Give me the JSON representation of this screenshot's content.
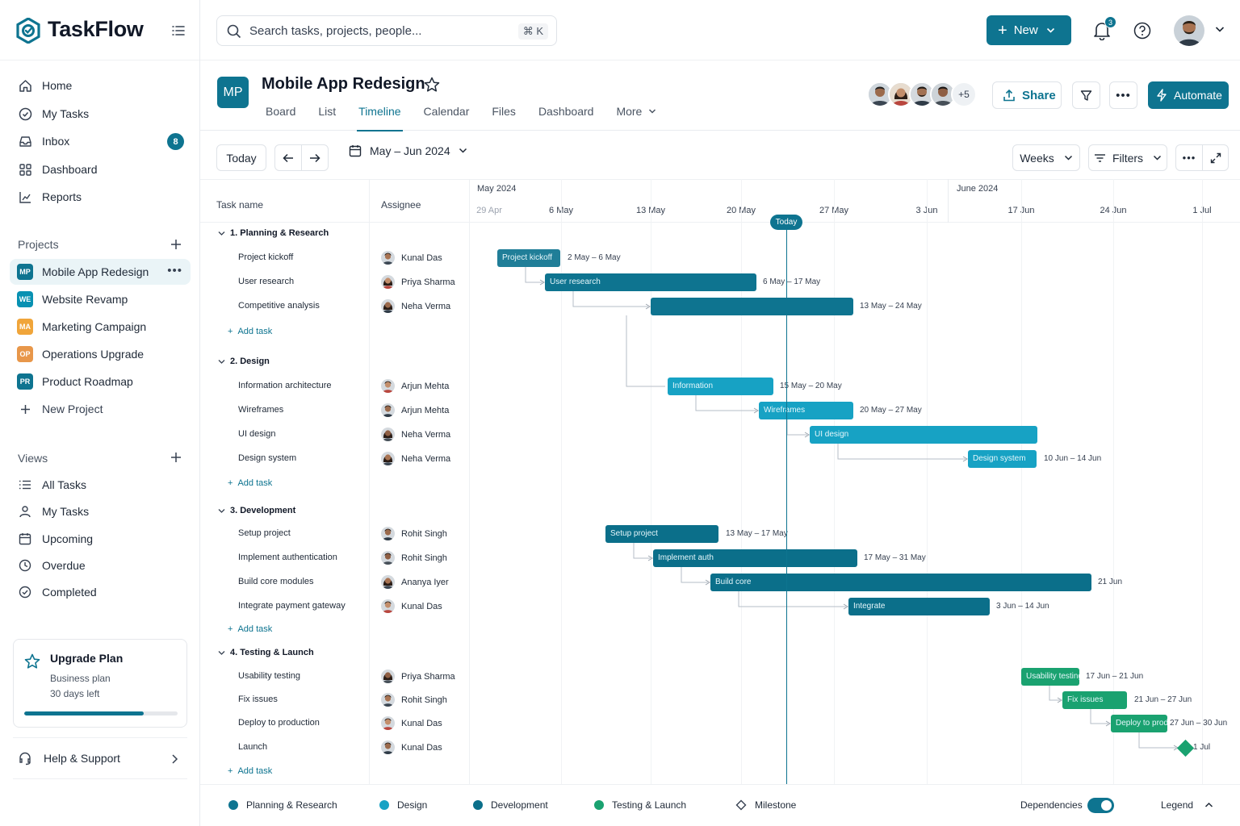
{
  "app": {
    "name": "TaskFlow"
  },
  "sidebar": {
    "nav": [
      {
        "label": "Home",
        "icon": "home-icon"
      },
      {
        "label": "My Tasks",
        "icon": "check-circle-icon"
      },
      {
        "label": "Inbox",
        "icon": "inbox-icon",
        "badge": "8"
      },
      {
        "label": "Dashboard",
        "icon": "grid-icon"
      },
      {
        "label": "Reports",
        "icon": "chart-icon"
      }
    ],
    "projects_title": "Projects",
    "projects": [
      {
        "code": "MP",
        "label": "Mobile App Redesign",
        "color": "#0e7490",
        "active": true
      },
      {
        "code": "WE",
        "label": "Website Revamp",
        "color": "#0891b2"
      },
      {
        "code": "MA",
        "label": "Marketing Campaign",
        "color": "#f59e0b"
      },
      {
        "code": "OP",
        "label": "Operations Upgrade",
        "color": "#e8974a"
      },
      {
        "code": "PR",
        "label": "Product Roadmap",
        "color": "#0e7490"
      }
    ],
    "new_project": "New Project",
    "views_title": "Views",
    "views": [
      {
        "label": "All Tasks",
        "icon": "list-icon"
      },
      {
        "label": "My Tasks",
        "icon": "user-icon"
      },
      {
        "label": "Upcoming",
        "icon": "calendar-icon"
      },
      {
        "label": "Overdue",
        "icon": "clock-icon"
      },
      {
        "label": "Completed",
        "icon": "check-circle-icon"
      }
    ],
    "upgrade": {
      "title": "Upgrade Plan",
      "plan": "Business plan",
      "days_left": "30 days left",
      "progress": 0.78
    },
    "help": "Help & Support"
  },
  "topbar": {
    "search_placeholder": "Search tasks, projects, people...",
    "search_shortcut": "⌘ K",
    "new_label": "New",
    "notifications": "3"
  },
  "project": {
    "code": "MP",
    "title": "Mobile App Redesign",
    "tabs": [
      "Board",
      "List",
      "Timeline",
      "Calendar",
      "Files",
      "Dashboard",
      "More"
    ],
    "active_tab": "Timeline",
    "members_more": "+5",
    "share_label": "Share",
    "automate_label": "Automate"
  },
  "toolbar": {
    "today": "Today",
    "date_range": "May – Jun 2024",
    "scale": "Weeks",
    "filters": "Filters"
  },
  "timeline": {
    "col_task": "Task name",
    "col_assignee": "Assignee",
    "months": [
      "May 2024",
      "June 2024"
    ],
    "weeks": [
      "29 Apr",
      "6 May",
      "13 May",
      "20 May",
      "27 May",
      "3 Jun",
      "17 Jun",
      "24 Jun",
      "1 Jul"
    ],
    "today_label": "Today",
    "add_task": "Add task",
    "groups": [
      {
        "title": "1. Planning & Research",
        "color": "#0e7490",
        "tasks": [
          {
            "name": "Project kickoff",
            "assignee": "Kunal Das",
            "bar_text": "Project kickoff",
            "range": "2 May – 6 May"
          },
          {
            "name": "User research",
            "assignee": "Priya Sharma",
            "bar_text": "User research",
            "range": "6 May – 17 May"
          },
          {
            "name": "Competitive analysis",
            "assignee": "Neha Verma",
            "bar_text": "",
            "range": "13 May – 24 May"
          }
        ]
      },
      {
        "title": "2. Design",
        "color": "#17a2c4",
        "tasks": [
          {
            "name": "Information architecture",
            "assignee": "Arjun Mehta",
            "bar_text": "Information",
            "range": "15 May – 20 May"
          },
          {
            "name": "Wireframes",
            "assignee": "Arjun Mehta",
            "bar_text": "Wireframes",
            "range": "20 May – 27 May"
          },
          {
            "name": "UI design",
            "assignee": "Neha Verma",
            "bar_text": "UI design",
            "range": ""
          },
          {
            "name": "Design system",
            "assignee": "Neha Verma",
            "bar_text": "Design system",
            "range": "10 Jun – 14 Jun"
          }
        ]
      },
      {
        "title": "3. Development",
        "color": "#0b6f8a",
        "tasks": [
          {
            "name": "Setup project",
            "assignee": "Rohit Singh",
            "bar_text": "Setup project",
            "range": "13 May – 17 May"
          },
          {
            "name": "Implement authentication",
            "assignee": "Rohit Singh",
            "bar_text": "Implement auth",
            "range": "17 May – 31 May"
          },
          {
            "name": "Build core modules",
            "assignee": "Ananya Iyer",
            "bar_text": "Build core",
            "range": "21 Jun"
          },
          {
            "name": "Integrate payment gateway",
            "assignee": "Kunal Das",
            "bar_text": "Integrate",
            "range": "3 Jun – 14 Jun"
          }
        ]
      },
      {
        "title": "4. Testing & Launch",
        "color": "#1aa270",
        "tasks": [
          {
            "name": "Usability testing",
            "assignee": "Priya Sharma",
            "bar_text": "Usability testing",
            "range": "17 Jun – 21 Jun"
          },
          {
            "name": "Fix issues",
            "assignee": "Rohit Singh",
            "bar_text": "Fix issues",
            "range": "21 Jun – 27 Jun"
          },
          {
            "name": "Deploy to production",
            "assignee": "Kunal Das",
            "bar_text": "Deploy to production",
            "range": "27 Jun – 30 Jun"
          },
          {
            "name": "Launch",
            "assignee": "Kunal Das",
            "bar_text": "",
            "range": "1 Jul",
            "milestone": true
          }
        ]
      }
    ]
  },
  "legend": {
    "items": [
      {
        "label": "Planning & Research",
        "color": "#0e7490"
      },
      {
        "label": "Design",
        "color": "#17a2c4"
      },
      {
        "label": "Development",
        "color": "#0b6f8a"
      },
      {
        "label": "Testing & Launch",
        "color": "#1aa270"
      }
    ],
    "milestone": "Milestone",
    "dependencies": "Dependencies",
    "dependencies_on": true,
    "legend_label": "Legend"
  }
}
